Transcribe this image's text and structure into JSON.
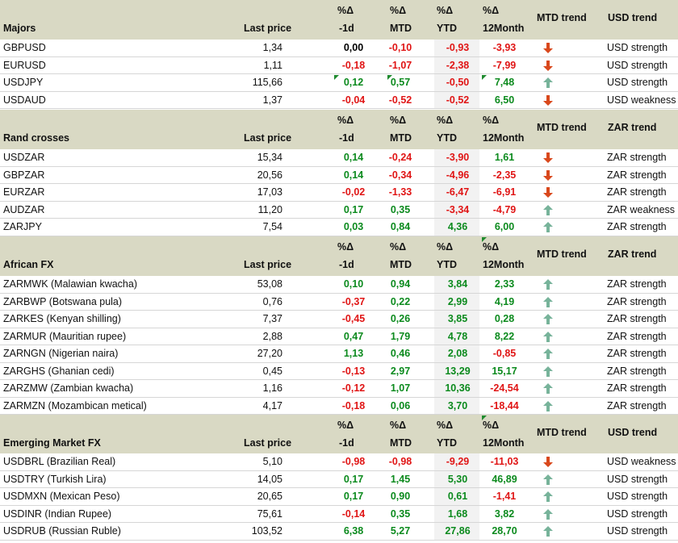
{
  "colors": {
    "header_bg": "#d9d9c4",
    "positive": "#0b8a1d",
    "negative": "#e01515",
    "arrow_up": "#77b39a",
    "arrow_down": "#d9481c"
  },
  "sections": [
    {
      "title": "Majors",
      "last_price": "Last price",
      "col_pct_symbol": "%Δ",
      "col_1d": "-1d",
      "col_mtd": "MTD",
      "col_ytd": "YTD",
      "col_12m": "12Month",
      "mtd_trend": "MTD trend",
      "trend_label": "USD trend",
      "rows": [
        {
          "name": "GBPUSD",
          "price": "1,34",
          "d1": "0,00",
          "mtd": "-0,10",
          "ytd": "-0,93",
          "m12": "-3,93",
          "arrow": "down",
          "trend": "USD strength"
        },
        {
          "name": "EURUSD",
          "price": "1,11",
          "d1": "-0,18",
          "mtd": "-1,07",
          "ytd": "-2,38",
          "m12": "-7,99",
          "arrow": "down",
          "trend": "USD strength"
        },
        {
          "name": "USDJPY",
          "price": "115,66",
          "d1": "0,12",
          "mtd": "0,57",
          "ytd": "-0,50",
          "m12": "7,48",
          "arrow": "up",
          "trend": "USD strength"
        },
        {
          "name": "USDAUD",
          "price": "1,37",
          "d1": "-0,04",
          "mtd": "-0,52",
          "ytd": "-0,52",
          "m12": "6,50",
          "arrow": "down",
          "trend": "USD weakness"
        }
      ]
    },
    {
      "title": "Rand crosses",
      "last_price": "Last price",
      "col_pct_symbol": "%Δ",
      "col_1d": "-1d",
      "col_mtd": "MTD",
      "col_ytd": "YTD",
      "col_12m": "12Month",
      "mtd_trend": "MTD trend",
      "trend_label": "ZAR trend",
      "rows": [
        {
          "name": "USDZAR",
          "price": "15,34",
          "d1": "0,14",
          "mtd": "-0,24",
          "ytd": "-3,90",
          "m12": "1,61",
          "arrow": "down",
          "trend": "ZAR strength"
        },
        {
          "name": "GBPZAR",
          "price": "20,56",
          "d1": "0,14",
          "mtd": "-0,34",
          "ytd": "-4,96",
          "m12": "-2,35",
          "arrow": "down",
          "trend": "ZAR strength"
        },
        {
          "name": "EURZAR",
          "price": "17,03",
          "d1": "-0,02",
          "mtd": "-1,33",
          "ytd": "-6,47",
          "m12": "-6,91",
          "arrow": "down",
          "trend": "ZAR strength"
        },
        {
          "name": "AUDZAR",
          "price": "11,20",
          "d1": "0,17",
          "mtd": "0,35",
          "ytd": "-3,34",
          "m12": "-4,79",
          "arrow": "up",
          "trend": "ZAR weakness"
        },
        {
          "name": "ZARJPY",
          "price": "7,54",
          "d1": "0,03",
          "mtd": "0,84",
          "ytd": "4,36",
          "m12": "6,00",
          "arrow": "up",
          "trend": "ZAR strength"
        }
      ]
    },
    {
      "title": "African FX",
      "last_price": "Last price",
      "col_pct_symbol": "%Δ",
      "col_1d": "-1d",
      "col_mtd": "MTD",
      "col_ytd": "YTD",
      "col_12m": "12Month",
      "mtd_trend": "MTD trend",
      "trend_label": "ZAR trend",
      "rows": [
        {
          "name": "ZARMWK (Malawian kwacha)",
          "price": "53,08",
          "d1": "0,10",
          "mtd": "0,94",
          "ytd": "3,84",
          "m12": "2,33",
          "arrow": "up",
          "trend": "ZAR strength"
        },
        {
          "name": "ZARBWP (Botswana pula)",
          "price": "0,76",
          "d1": "-0,37",
          "mtd": "0,22",
          "ytd": "2,99",
          "m12": "4,19",
          "arrow": "up",
          "trend": "ZAR strength"
        },
        {
          "name": "ZARKES (Kenyan shilling)",
          "price": "7,37",
          "d1": "-0,45",
          "mtd": "0,26",
          "ytd": "3,85",
          "m12": "0,28",
          "arrow": "up",
          "trend": "ZAR strength"
        },
        {
          "name": "ZARMUR (Mauritian rupee)",
          "price": "2,88",
          "d1": "0,47",
          "mtd": "1,79",
          "ytd": "4,78",
          "m12": "8,22",
          "arrow": "up",
          "trend": "ZAR strength"
        },
        {
          "name": "ZARNGN (Nigerian naira)",
          "price": "27,20",
          "d1": "1,13",
          "mtd": "0,46",
          "ytd": "2,08",
          "m12": "-0,85",
          "arrow": "up",
          "trend": "ZAR strength"
        },
        {
          "name": "ZARGHS (Ghanian cedi)",
          "price": "0,45",
          "d1": "-0,13",
          "mtd": "2,97",
          "ytd": "13,29",
          "m12": "15,17",
          "arrow": "up",
          "trend": "ZAR strength"
        },
        {
          "name": "ZARZMW (Zambian kwacha)",
          "price": "1,16",
          "d1": "-0,12",
          "mtd": "1,07",
          "ytd": "10,36",
          "m12": "-24,54",
          "arrow": "up",
          "trend": "ZAR strength"
        },
        {
          "name": "ZARMZN (Mozambican metical)",
          "price": "4,17",
          "d1": "-0,18",
          "mtd": "0,06",
          "ytd": "3,70",
          "m12": "-18,44",
          "arrow": "up",
          "trend": "ZAR strength"
        }
      ]
    },
    {
      "title": "Emerging Market FX",
      "last_price": "Last price",
      "col_pct_symbol": "%Δ",
      "col_1d": "-1d",
      "col_mtd": "MTD",
      "col_ytd": "YTD",
      "col_12m": "12Month",
      "mtd_trend": "MTD trend",
      "trend_label": "USD trend",
      "rows": [
        {
          "name": "USDBRL (Brazilian Real)",
          "price": "5,10",
          "d1": "-0,98",
          "mtd": "-0,98",
          "ytd": "-9,29",
          "m12": "-11,03",
          "arrow": "down",
          "trend": "USD weakness"
        },
        {
          "name": "USDTRY (Turkish Lira)",
          "price": "14,05",
          "d1": "0,17",
          "mtd": "1,45",
          "ytd": "5,30",
          "m12": "46,89",
          "arrow": "up",
          "trend": "USD strength"
        },
        {
          "name": "USDMXN (Mexican Peso)",
          "price": "20,65",
          "d1": "0,17",
          "mtd": "0,90",
          "ytd": "0,61",
          "m12": "-1,41",
          "arrow": "up",
          "trend": "USD strength"
        },
        {
          "name": "USDINR (Indian Rupee)",
          "price": "75,61",
          "d1": "-0,14",
          "mtd": "0,35",
          "ytd": "1,68",
          "m12": "3,82",
          "arrow": "up",
          "trend": "USD strength"
        },
        {
          "name": "USDRUB (Russian Ruble)",
          "price": "103,52",
          "d1": "6,38",
          "mtd": "5,27",
          "ytd": "27,86",
          "m12": "28,70",
          "arrow": "up",
          "trend": "USD strength"
        }
      ]
    }
  ]
}
